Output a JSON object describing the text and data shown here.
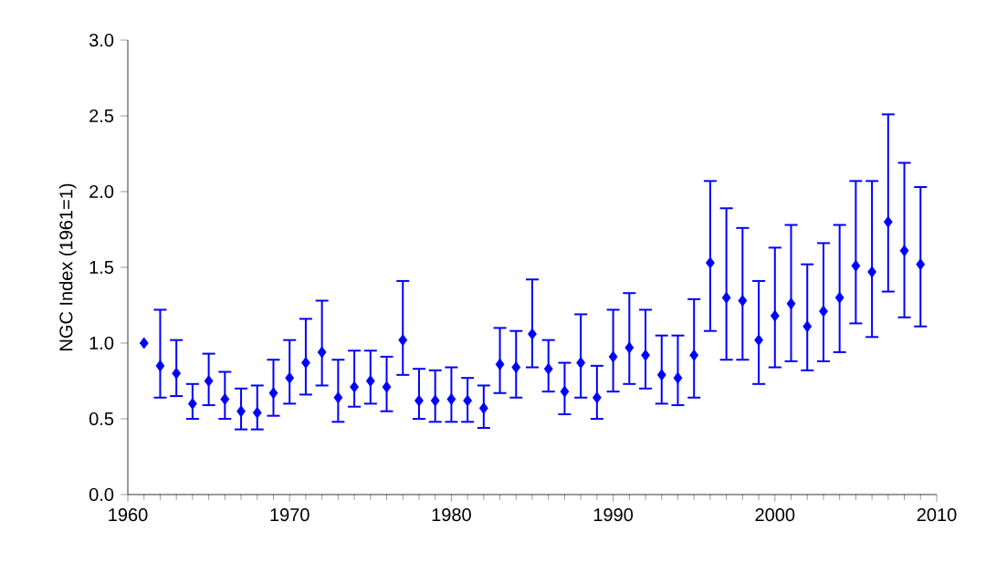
{
  "chart_data": {
    "type": "scatter",
    "ylabel": "NGC Index (1961=1)",
    "x": [
      1961,
      1962,
      1963,
      1964,
      1965,
      1966,
      1967,
      1968,
      1969,
      1970,
      1971,
      1972,
      1973,
      1974,
      1975,
      1976,
      1977,
      1978,
      1979,
      1980,
      1981,
      1982,
      1983,
      1984,
      1985,
      1986,
      1987,
      1988,
      1989,
      1990,
      1991,
      1992,
      1993,
      1994,
      1995,
      1996,
      1997,
      1998,
      1999,
      2000,
      2001,
      2002,
      2003,
      2004,
      2005,
      2006,
      2007,
      2008,
      2009
    ],
    "values": [
      1.0,
      0.85,
      0.8,
      0.6,
      0.75,
      0.63,
      0.55,
      0.54,
      0.67,
      0.77,
      0.87,
      0.94,
      0.64,
      0.71,
      0.75,
      0.71,
      1.02,
      0.62,
      0.62,
      0.63,
      0.62,
      0.57,
      0.86,
      0.84,
      1.06,
      0.83,
      0.68,
      0.87,
      0.64,
      0.91,
      0.97,
      0.92,
      0.79,
      0.77,
      0.92,
      1.53,
      1.3,
      1.28,
      1.02,
      1.18,
      1.26,
      1.11,
      1.21,
      1.3,
      1.51,
      1.47,
      1.8,
      1.61,
      1.52
    ],
    "errors": [
      null,
      [
        0.64,
        1.22
      ],
      [
        0.65,
        1.02
      ],
      [
        0.5,
        0.73
      ],
      [
        0.59,
        0.93
      ],
      [
        0.5,
        0.81
      ],
      [
        0.43,
        0.7
      ],
      [
        0.43,
        0.72
      ],
      [
        0.52,
        0.89
      ],
      [
        0.6,
        1.02
      ],
      [
        0.66,
        1.16
      ],
      [
        0.72,
        1.28
      ],
      [
        0.48,
        0.89
      ],
      [
        0.58,
        0.95
      ],
      [
        0.6,
        0.95
      ],
      [
        0.55,
        0.91
      ],
      [
        0.79,
        1.41
      ],
      [
        0.5,
        0.83
      ],
      [
        0.48,
        0.82
      ],
      [
        0.48,
        0.84
      ],
      [
        0.48,
        0.77
      ],
      [
        0.44,
        0.72
      ],
      [
        0.67,
        1.1
      ],
      [
        0.64,
        1.08
      ],
      [
        0.84,
        1.42
      ],
      [
        0.68,
        1.02
      ],
      [
        0.53,
        0.87
      ],
      [
        0.64,
        1.19
      ],
      [
        0.5,
        0.85
      ],
      [
        0.68,
        1.22
      ],
      [
        0.73,
        1.33
      ],
      [
        0.7,
        1.22
      ],
      [
        0.6,
        1.05
      ],
      [
        0.59,
        1.05
      ],
      [
        0.64,
        1.29
      ],
      [
        1.08,
        2.07
      ],
      [
        0.89,
        1.89
      ],
      [
        0.89,
        1.76
      ],
      [
        0.73,
        1.41
      ],
      [
        0.84,
        1.63
      ],
      [
        0.88,
        1.78
      ],
      [
        0.82,
        1.52
      ],
      [
        0.88,
        1.66
      ],
      [
        0.94,
        1.78
      ],
      [
        1.13,
        2.07
      ],
      [
        1.04,
        2.07
      ],
      [
        1.34,
        2.51
      ],
      [
        1.17,
        2.19
      ],
      [
        1.11,
        2.03
      ]
    ],
    "color": "#0000ff",
    "marker": "diamond",
    "xlim": [
      1960,
      2010
    ],
    "xticks": [
      1960,
      1970,
      1980,
      1990,
      2000,
      2010
    ],
    "ylim": [
      0,
      3
    ],
    "yticks": [
      {
        "value": 0,
        "label": "0.0"
      },
      {
        "value": 0.5,
        "label": "0.5"
      },
      {
        "value": 1,
        "label": "1.0"
      },
      {
        "value": 1.5,
        "label": "1.5"
      },
      {
        "value": 2,
        "label": "2.0"
      },
      {
        "value": 2.5,
        "label": "2.5"
      },
      {
        "value": 3,
        "label": "3.0"
      }
    ]
  }
}
